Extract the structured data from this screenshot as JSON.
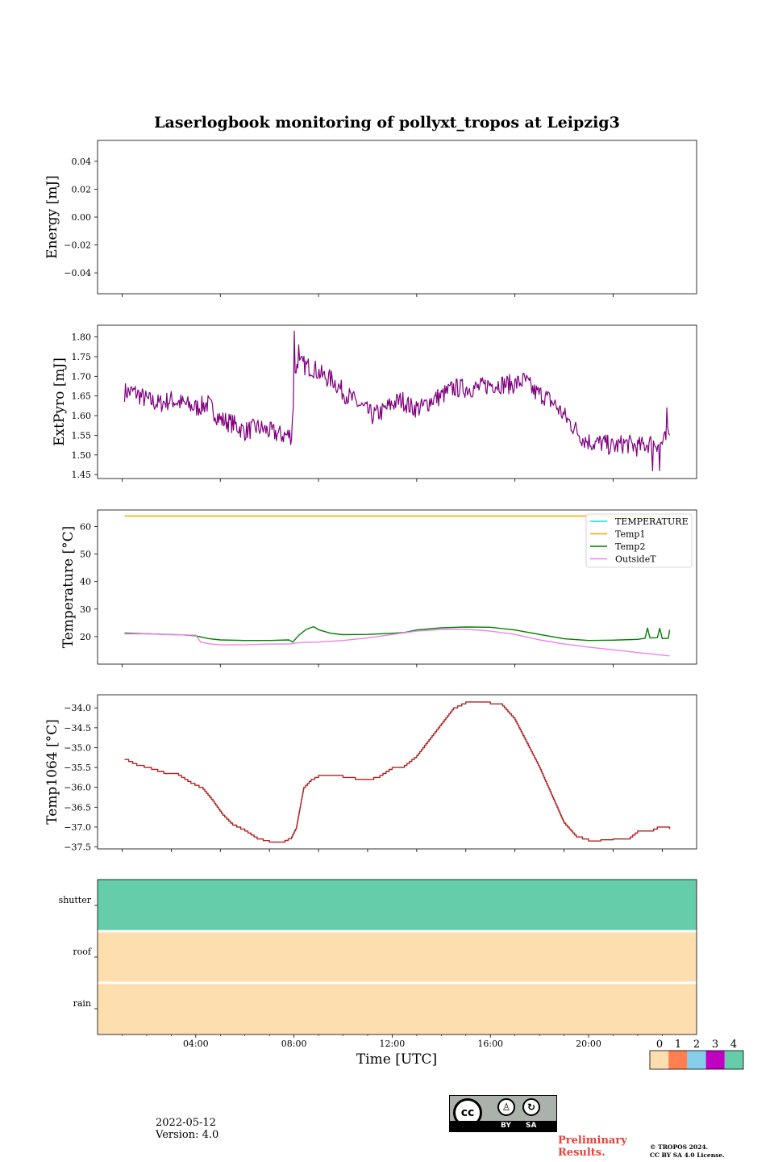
{
  "chart_data": {
    "title": "Laserlogbook monitoring of pollyxt_tropos at Leipzig3",
    "xlabel": "Time [UTC]",
    "x_range_hours": [
      0,
      24.4
    ],
    "x_ticks": [
      {
        "hour": 4,
        "label": "04:00"
      },
      {
        "hour": 8,
        "label": "08:00"
      },
      {
        "hour": 12,
        "label": "12:00"
      },
      {
        "hour": 16,
        "label": "16:00"
      },
      {
        "hour": 20,
        "label": "20:00"
      }
    ],
    "panels": [
      {
        "id": "energy",
        "type": "line",
        "ylabel": "Energy [mJ]",
        "ylim": [
          -0.055,
          0.055
        ],
        "yticks": [
          "0.04",
          "0.02",
          "0.00",
          "−0.02",
          "−0.04"
        ],
        "ytick_values": [
          0.04,
          0.02,
          0.0,
          -0.02,
          -0.04
        ],
        "series": []
      },
      {
        "id": "extpyro",
        "type": "line",
        "ylabel": "ExtPyro [mJ]",
        "ylim": [
          1.44,
          1.83
        ],
        "yticks": [
          "1.80",
          "1.75",
          "1.70",
          "1.65",
          "1.60",
          "1.55",
          "1.50",
          "1.45"
        ],
        "ytick_values": [
          1.8,
          1.75,
          1.7,
          1.65,
          1.6,
          1.55,
          1.5,
          1.45
        ],
        "series": [
          {
            "name": "ExtPyro",
            "color": "#800080",
            "noise": 0.025,
            "points": [
              [
                1.1,
                1.66
              ],
              [
                1.5,
                1.66
              ],
              [
                2.0,
                1.64
              ],
              [
                2.5,
                1.63
              ],
              [
                3.0,
                1.64
              ],
              [
                3.5,
                1.63
              ],
              [
                4.0,
                1.62
              ],
              [
                4.5,
                1.63
              ],
              [
                5.0,
                1.59
              ],
              [
                5.5,
                1.58
              ],
              [
                6.0,
                1.56
              ],
              [
                6.5,
                1.57
              ],
              [
                7.0,
                1.56
              ],
              [
                7.5,
                1.55
              ],
              [
                7.9,
                1.55
              ],
              [
                8.05,
                1.72
              ],
              [
                8.3,
                1.73
              ],
              [
                8.8,
                1.72
              ],
              [
                9.2,
                1.7
              ],
              [
                9.6,
                1.69
              ],
              [
                10.0,
                1.66
              ],
              [
                10.4,
                1.64
              ],
              [
                10.8,
                1.62
              ],
              [
                11.2,
                1.6
              ],
              [
                11.6,
                1.61
              ],
              [
                12.0,
                1.63
              ],
              [
                12.4,
                1.64
              ],
              [
                12.8,
                1.62
              ],
              [
                13.2,
                1.62
              ],
              [
                13.6,
                1.64
              ],
              [
                14.0,
                1.65
              ],
              [
                14.5,
                1.67
              ],
              [
                15.0,
                1.67
              ],
              [
                15.5,
                1.67
              ],
              [
                16.0,
                1.68
              ],
              [
                16.5,
                1.68
              ],
              [
                17.0,
                1.68
              ],
              [
                17.4,
                1.69
              ],
              [
                17.8,
                1.66
              ],
              [
                18.2,
                1.65
              ],
              [
                18.6,
                1.63
              ],
              [
                19.0,
                1.6
              ],
              [
                19.4,
                1.57
              ],
              [
                19.8,
                1.54
              ],
              [
                20.2,
                1.53
              ],
              [
                20.6,
                1.53
              ],
              [
                21.0,
                1.52
              ],
              [
                21.5,
                1.53
              ],
              [
                22.0,
                1.52
              ],
              [
                22.5,
                1.53
              ],
              [
                23.0,
                1.53
              ],
              [
                23.3,
                1.55
              ]
            ],
            "spikes": [
              [
                8.0,
                1.815
              ],
              [
                8.2,
                1.78
              ],
              [
                22.6,
                1.46
              ],
              [
                22.9,
                1.46
              ],
              [
                23.2,
                1.62
              ]
            ]
          }
        ]
      },
      {
        "id": "temperature",
        "type": "line",
        "ylabel": "Temperature [°C]",
        "ylim": [
          10,
          66
        ],
        "yticks": [
          "60",
          "50",
          "40",
          "30",
          "20"
        ],
        "ytick_values": [
          60,
          50,
          40,
          30,
          20
        ],
        "legend_position": "upper right",
        "series": [
          {
            "name": "TEMPERATURE",
            "color": "#00e5ee",
            "points": []
          },
          {
            "name": "Temp1",
            "color": "#ffa500",
            "points": [
              [
                1.1,
                63.8
              ],
              [
                23.3,
                63.8
              ]
            ]
          },
          {
            "name": "Temp2",
            "color": "#008000",
            "points": [
              [
                1.1,
                21.3
              ],
              [
                3.5,
                20.6
              ],
              [
                4.0,
                20.3
              ],
              [
                4.5,
                19.3
              ],
              [
                5.0,
                18.8
              ],
              [
                6.0,
                18.6
              ],
              [
                7.0,
                18.6
              ],
              [
                7.8,
                18.8
              ],
              [
                7.95,
                18.0
              ],
              [
                8.2,
                20.5
              ],
              [
                8.5,
                22.6
              ],
              [
                8.8,
                23.6
              ],
              [
                9.0,
                22.5
              ],
              [
                9.5,
                21.2
              ],
              [
                10.0,
                20.7
              ],
              [
                11.0,
                20.8
              ],
              [
                12.0,
                21.2
              ],
              [
                12.5,
                21.5
              ],
              [
                13.0,
                22.4
              ],
              [
                14.0,
                23.2
              ],
              [
                15.0,
                23.5
              ],
              [
                16.0,
                23.4
              ],
              [
                17.0,
                22.4
              ],
              [
                18.0,
                20.8
              ],
              [
                19.0,
                19.2
              ],
              [
                20.0,
                18.6
              ],
              [
                21.0,
                18.7
              ],
              [
                22.0,
                19.0
              ],
              [
                22.3,
                19.4
              ],
              [
                22.4,
                23.1
              ],
              [
                22.5,
                19.5
              ],
              [
                22.8,
                19.6
              ],
              [
                22.9,
                23.0
              ],
              [
                23.0,
                19.3
              ],
              [
                23.25,
                19.4
              ],
              [
                23.3,
                22.4
              ]
            ]
          },
          {
            "name": "OutsideT",
            "color": "#ee82ee",
            "points": [
              [
                1.1,
                21.0
              ],
              [
                2.0,
                21.0
              ],
              [
                3.0,
                20.7
              ],
              [
                4.0,
                20.5
              ],
              [
                4.2,
                18.0
              ],
              [
                4.6,
                17.3
              ],
              [
                5.0,
                17.0
              ],
              [
                6.0,
                17.0
              ],
              [
                7.0,
                17.3
              ],
              [
                7.8,
                17.3
              ],
              [
                8.2,
                17.8
              ],
              [
                9.0,
                18.0
              ],
              [
                10.0,
                18.6
              ],
              [
                11.0,
                19.5
              ],
              [
                12.0,
                20.8
              ],
              [
                13.0,
                22.0
              ],
              [
                14.0,
                22.6
              ],
              [
                15.0,
                22.7
              ],
              [
                16.0,
                22.0
              ],
              [
                17.0,
                20.8
              ],
              [
                18.0,
                18.8
              ],
              [
                19.0,
                17.3
              ],
              [
                20.0,
                16.2
              ],
              [
                21.0,
                15.2
              ],
              [
                22.0,
                14.2
              ],
              [
                23.3,
                13.0
              ]
            ]
          }
        ]
      },
      {
        "id": "temp1064",
        "type": "line",
        "ylabel": "Temp1064 [°C]",
        "ylim": [
          -37.55,
          -33.67
        ],
        "yticks": [
          "−34.0",
          "−34.5",
          "−35.0",
          "−35.5",
          "−36.0",
          "−36.5",
          "−37.0",
          "−37.5"
        ],
        "ytick_values": [
          -34.0,
          -34.5,
          -35.0,
          -35.5,
          -36.0,
          -36.5,
          -37.0,
          -37.5
        ],
        "series": [
          {
            "name": "Temp1064",
            "color": "#b22222",
            "step": true,
            "points": [
              [
                1.1,
                -35.3
              ],
              [
                1.6,
                -35.45
              ],
              [
                2.2,
                -35.55
              ],
              [
                2.7,
                -35.65
              ],
              [
                3.3,
                -35.7
              ],
              [
                3.8,
                -35.9
              ],
              [
                4.3,
                -36.05
              ],
              [
                4.7,
                -36.35
              ],
              [
                5.1,
                -36.7
              ],
              [
                5.5,
                -36.95
              ],
              [
                6.0,
                -37.1
              ],
              [
                6.5,
                -37.3
              ],
              [
                7.0,
                -37.38
              ],
              [
                7.5,
                -37.38
              ],
              [
                7.9,
                -37.25
              ],
              [
                8.1,
                -37.0
              ],
              [
                8.25,
                -36.5
              ],
              [
                8.4,
                -36.0
              ],
              [
                8.7,
                -35.8
              ],
              [
                9.0,
                -35.7
              ],
              [
                9.5,
                -35.7
              ],
              [
                10.0,
                -35.75
              ],
              [
                10.5,
                -35.8
              ],
              [
                11.0,
                -35.8
              ],
              [
                11.5,
                -35.7
              ],
              [
                12.0,
                -35.5
              ],
              [
                12.5,
                -35.45
              ],
              [
                13.0,
                -35.2
              ],
              [
                13.5,
                -34.8
              ],
              [
                14.0,
                -34.4
              ],
              [
                14.5,
                -34.0
              ],
              [
                15.0,
                -33.85
              ],
              [
                15.5,
                -33.85
              ],
              [
                16.0,
                -33.9
              ],
              [
                16.5,
                -33.95
              ],
              [
                17.0,
                -34.3
              ],
              [
                17.5,
                -34.9
              ],
              [
                18.0,
                -35.5
              ],
              [
                18.5,
                -36.2
              ],
              [
                19.0,
                -36.9
              ],
              [
                19.5,
                -37.25
              ],
              [
                20.0,
                -37.35
              ],
              [
                20.5,
                -37.32
              ],
              [
                21.0,
                -37.3
              ],
              [
                21.6,
                -37.3
              ],
              [
                22.0,
                -37.1
              ],
              [
                22.5,
                -37.1
              ],
              [
                22.8,
                -37.0
              ],
              [
                23.3,
                -37.05
              ]
            ]
          }
        ]
      },
      {
        "id": "status",
        "type": "heatmap",
        "rows": [
          "shutter",
          "roof",
          "rain"
        ],
        "row_values": [
          4,
          0,
          0
        ]
      }
    ],
    "colorbar": {
      "ticks": [
        "0",
        "1",
        "2",
        "3",
        "4"
      ],
      "colors": [
        "#fddeaf",
        "#ff7f50",
        "#87ceeb",
        "#c000c0",
        "#66cdaa"
      ]
    }
  },
  "meta": {
    "date": "2022-05-12",
    "version": "Version: 4.0",
    "preliminary_line1": "Preliminary",
    "preliminary_line2": "Results.",
    "copyright_line1": "© TROPOS 2024.",
    "copyright_line2": "CC BY SA 4.0 License.",
    "cc_badge": {
      "cc": "cc",
      "by": "BY",
      "sa": "SA"
    }
  }
}
